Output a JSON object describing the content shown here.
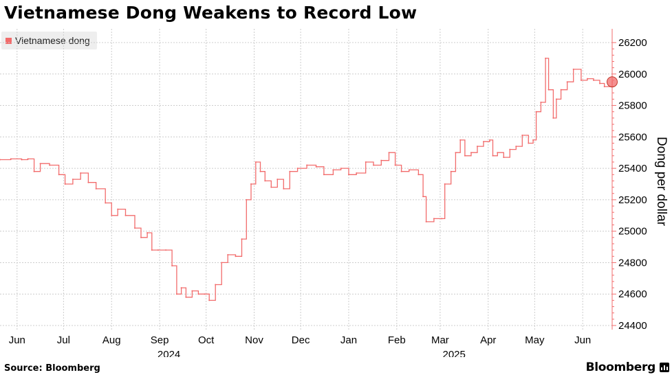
{
  "title": "Vietnamese Dong Weakens to Record Low",
  "source": "Source: Bloomberg",
  "brand": "Bloomberg",
  "colors": {
    "series": "#f26b6b",
    "axis": "#f26b6b",
    "grid": "#cccccc"
  },
  "chart_data": {
    "type": "line",
    "title": "Vietnamese Dong Weakens to Record Low",
    "ylabel": "Dong per dollar",
    "xlabel": "",
    "ylim": [
      24400,
      26250
    ],
    "yticks": [
      24400,
      24600,
      24800,
      25000,
      25200,
      25400,
      25600,
      25800,
      26000,
      26200
    ],
    "xlim": [
      "2024-05-21",
      "2025-06-20"
    ],
    "x_month_ticks": [
      {
        "label": "Jun",
        "date": "2024-06-01"
      },
      {
        "label": "Jul",
        "date": "2024-07-01"
      },
      {
        "label": "Aug",
        "date": "2024-08-01"
      },
      {
        "label": "Sep",
        "date": "2024-09-01"
      },
      {
        "label": "Oct",
        "date": "2024-10-01"
      },
      {
        "label": "Nov",
        "date": "2024-11-01"
      },
      {
        "label": "Dec",
        "date": "2024-12-01"
      },
      {
        "label": "Jan",
        "date": "2025-01-01"
      },
      {
        "label": "Feb",
        "date": "2025-02-01"
      },
      {
        "label": "Mar",
        "date": "2025-03-01"
      },
      {
        "label": "Apr",
        "date": "2025-04-01"
      },
      {
        "label": "May",
        "date": "2025-05-01"
      },
      {
        "label": "Jun",
        "date": "2025-06-01"
      }
    ],
    "x_year_labels": [
      {
        "label": "2024",
        "date": "2024-09-07"
      },
      {
        "label": "2025",
        "date": "2025-03-10"
      }
    ],
    "grid": true,
    "legend_position": "top-left",
    "series": [
      {
        "name": "Vietnamese dong",
        "color": "#f26b6b",
        "points": [
          [
            "2024-05-21",
            25455
          ],
          [
            "2024-05-28",
            25460
          ],
          [
            "2024-06-04",
            25455
          ],
          [
            "2024-06-08",
            25460
          ],
          [
            "2024-06-12",
            25380
          ],
          [
            "2024-06-16",
            25430
          ],
          [
            "2024-06-22",
            25420
          ],
          [
            "2024-06-28",
            25360
          ],
          [
            "2024-07-02",
            25300
          ],
          [
            "2024-07-07",
            25330
          ],
          [
            "2024-07-12",
            25370
          ],
          [
            "2024-07-17",
            25310
          ],
          [
            "2024-07-22",
            25270
          ],
          [
            "2024-07-28",
            25180
          ],
          [
            "2024-08-01",
            25100
          ],
          [
            "2024-08-05",
            25140
          ],
          [
            "2024-08-10",
            25100
          ],
          [
            "2024-08-16",
            25020
          ],
          [
            "2024-08-20",
            24960
          ],
          [
            "2024-08-24",
            24990
          ],
          [
            "2024-08-27",
            24880
          ],
          [
            "2024-08-31",
            24880
          ],
          [
            "2024-09-05",
            24880
          ],
          [
            "2024-09-09",
            24780
          ],
          [
            "2024-09-12",
            24600
          ],
          [
            "2024-09-15",
            24640
          ],
          [
            "2024-09-18",
            24580
          ],
          [
            "2024-09-22",
            24620
          ],
          [
            "2024-09-26",
            24600
          ],
          [
            "2024-09-30",
            24600
          ],
          [
            "2024-10-03",
            24560
          ],
          [
            "2024-10-07",
            24660
          ],
          [
            "2024-10-11",
            24800
          ],
          [
            "2024-10-15",
            24850
          ],
          [
            "2024-10-20",
            24840
          ],
          [
            "2024-10-24",
            24950
          ],
          [
            "2024-10-27",
            25200
          ],
          [
            "2024-10-30",
            25300
          ],
          [
            "2024-11-02",
            25440
          ],
          [
            "2024-11-05",
            25380
          ],
          [
            "2024-11-08",
            25320
          ],
          [
            "2024-11-12",
            25280
          ],
          [
            "2024-11-16",
            25330
          ],
          [
            "2024-11-20",
            25270
          ],
          [
            "2024-11-24",
            25380
          ],
          [
            "2024-11-29",
            25400
          ],
          [
            "2024-12-05",
            25420
          ],
          [
            "2024-12-11",
            25410
          ],
          [
            "2024-12-16",
            25360
          ],
          [
            "2024-12-22",
            25390
          ],
          [
            "2024-12-27",
            25400
          ],
          [
            "2025-01-01",
            25360
          ],
          [
            "2025-01-06",
            25370
          ],
          [
            "2025-01-12",
            25440
          ],
          [
            "2025-01-17",
            25420
          ],
          [
            "2025-01-22",
            25450
          ],
          [
            "2025-01-27",
            25500
          ],
          [
            "2025-01-31",
            25420
          ],
          [
            "2025-02-04",
            25380
          ],
          [
            "2025-02-09",
            25390
          ],
          [
            "2025-02-15",
            25360
          ],
          [
            "2025-02-18",
            25220
          ],
          [
            "2025-02-20",
            25060
          ],
          [
            "2025-02-25",
            25080
          ],
          [
            "2025-03-02",
            25080
          ],
          [
            "2025-03-04",
            25300
          ],
          [
            "2025-03-08",
            25380
          ],
          [
            "2025-03-11",
            25500
          ],
          [
            "2025-03-14",
            25580
          ],
          [
            "2025-03-17",
            25480
          ],
          [
            "2025-03-21",
            25500
          ],
          [
            "2025-03-25",
            25540
          ],
          [
            "2025-03-29",
            25570
          ],
          [
            "2025-04-02",
            25580
          ],
          [
            "2025-04-04",
            25480
          ],
          [
            "2025-04-07",
            25500
          ],
          [
            "2025-04-11",
            25470
          ],
          [
            "2025-04-15",
            25520
          ],
          [
            "2025-04-19",
            25540
          ],
          [
            "2025-04-23",
            25610
          ],
          [
            "2025-04-27",
            25560
          ],
          [
            "2025-04-30",
            25580
          ],
          [
            "2025-05-02",
            25760
          ],
          [
            "2025-05-05",
            25820
          ],
          [
            "2025-05-08",
            26100
          ],
          [
            "2025-05-10",
            25900
          ],
          [
            "2025-05-13",
            25720
          ],
          [
            "2025-05-15",
            25840
          ],
          [
            "2025-05-18",
            25900
          ],
          [
            "2025-05-22",
            25950
          ],
          [
            "2025-05-26",
            26030
          ],
          [
            "2025-05-31",
            25960
          ],
          [
            "2025-06-04",
            25970
          ],
          [
            "2025-06-08",
            25960
          ],
          [
            "2025-06-12",
            25940
          ],
          [
            "2025-06-15",
            25920
          ],
          [
            "2025-06-20",
            25950
          ]
        ]
      }
    ]
  }
}
